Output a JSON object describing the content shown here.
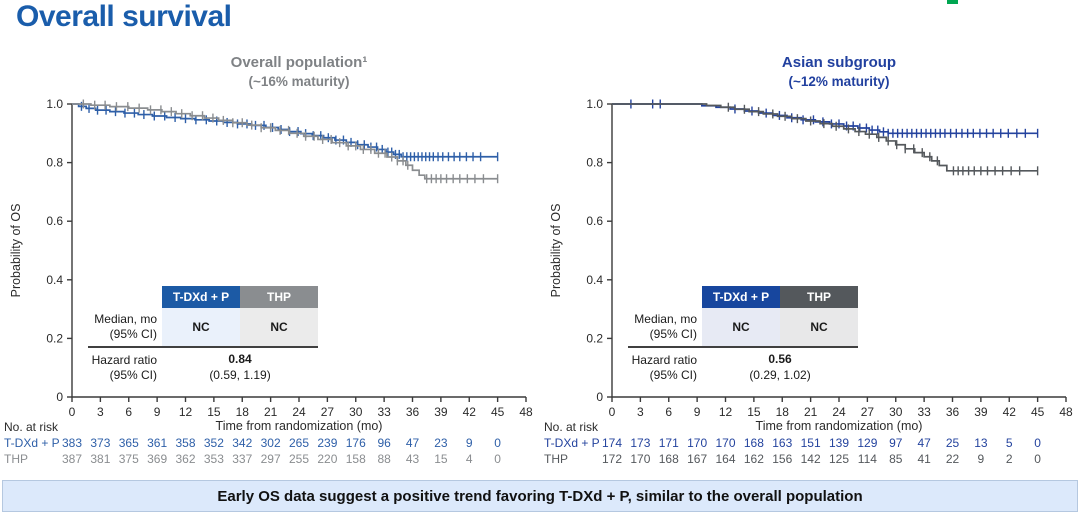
{
  "page": {
    "title": "Overall survival",
    "title_color": "#1a5dab",
    "brand_color": "#00a651",
    "banner": {
      "text": "Early OS data suggest a positive trend favoring T-DXd + P, similar to the overall population",
      "bg": "#dce9fb"
    }
  },
  "chart_data": [
    {
      "type": "line",
      "subtype": "kaplan-meier",
      "title": "Overall population¹",
      "subtitle": "(~16% maturity)",
      "title_color": "#7f8285",
      "xlabel": "Time from randomization (mo)",
      "ylabel": "Probability of OS",
      "xlim": [
        0,
        48
      ],
      "xticks": [
        0,
        3,
        6,
        9,
        12,
        15,
        18,
        21,
        24,
        27,
        30,
        33,
        36,
        39,
        42,
        45,
        48
      ],
      "ylim": [
        0,
        1
      ],
      "yticks": [
        0,
        0.2,
        0.4,
        0.6,
        0.8,
        1.0
      ],
      "ytick_labels": [
        "0",
        "0.2",
        "0.4",
        "0.6",
        "0.8",
        "1.0"
      ],
      "series": [
        {
          "name": "T-DXd + P",
          "color": "#2e5fa8",
          "steps": [
            [
              0,
              1
            ],
            [
              0.7,
              0.992
            ],
            [
              1.5,
              0.985
            ],
            [
              2.5,
              0.979
            ],
            [
              4,
              0.974
            ],
            [
              5.5,
              0.969
            ],
            [
              7,
              0.964
            ],
            [
              8.5,
              0.959
            ],
            [
              10,
              0.954
            ],
            [
              11.5,
              0.95
            ],
            [
              13,
              0.946
            ],
            [
              14.5,
              0.942
            ],
            [
              16,
              0.937
            ],
            [
              17.5,
              0.932
            ],
            [
              19,
              0.927
            ],
            [
              20.5,
              0.92
            ],
            [
              21.8,
              0.913
            ],
            [
              23,
              0.906
            ],
            [
              24.2,
              0.899
            ],
            [
              25.4,
              0.892
            ],
            [
              26.6,
              0.885
            ],
            [
              27.8,
              0.877
            ],
            [
              29,
              0.869
            ],
            [
              30.2,
              0.861
            ],
            [
              31.3,
              0.853
            ],
            [
              32.3,
              0.845
            ],
            [
              33.2,
              0.836
            ],
            [
              34,
              0.828
            ],
            [
              34.8,
              0.82
            ]
          ],
          "end_x": 45,
          "censors": [
            1.0,
            1.8,
            2.7,
            3.6,
            4.6,
            5.6,
            6.6,
            7.6,
            8.7,
            9.8,
            10.9,
            12,
            13.1,
            14.2,
            15.3,
            16.4,
            17.5,
            18.5,
            19.4,
            20.3,
            21.2,
            22.1,
            23,
            23.9,
            24.7,
            25.5,
            26.3,
            27.1,
            27.9,
            28.7,
            29.5,
            30.2,
            30.9,
            31.6,
            32.2,
            32.8,
            33.4,
            33.8,
            34.2,
            34.6,
            35,
            35.4,
            35.8,
            36.2,
            36.6,
            37,
            37.4,
            37.8,
            38.2,
            38.7,
            39.2,
            39.8,
            40.4,
            41,
            41.7,
            42.4,
            43.2,
            45
          ]
        },
        {
          "name": "THP",
          "color": "#8a8d90",
          "steps": [
            [
              0,
              1
            ],
            [
              2,
              0.996
            ],
            [
              4,
              0.991
            ],
            [
              6,
              0.986
            ],
            [
              8,
              0.98
            ],
            [
              9.5,
              0.974
            ],
            [
              11,
              0.967
            ],
            [
              12.5,
              0.96
            ],
            [
              14,
              0.952
            ],
            [
              15.5,
              0.944
            ],
            [
              17,
              0.936
            ],
            [
              18.5,
              0.928
            ],
            [
              20,
              0.919
            ],
            [
              21.5,
              0.91
            ],
            [
              23,
              0.9
            ],
            [
              24.5,
              0.89
            ],
            [
              26,
              0.879
            ],
            [
              27.5,
              0.868
            ],
            [
              29,
              0.857
            ],
            [
              30.5,
              0.845
            ],
            [
              32,
              0.832
            ],
            [
              33.3,
              0.819
            ],
            [
              34.4,
              0.806
            ],
            [
              35.3,
              0.791
            ],
            [
              36,
              0.774
            ],
            [
              36.7,
              0.757
            ],
            [
              37.3,
              0.745
            ]
          ],
          "end_x": 45,
          "censors": [
            1.2,
            2.4,
            3.5,
            4.7,
            5.9,
            7.1,
            8.3,
            9.4,
            10.5,
            11.6,
            12.7,
            13.8,
            14.9,
            16,
            17,
            18,
            19,
            20,
            21,
            22,
            22.9,
            23.8,
            24.7,
            25.6,
            26.5,
            27.4,
            28.3,
            29.2,
            30,
            30.8,
            31.6,
            32.4,
            33.1,
            33.8,
            34.4,
            35,
            35.5,
            37.5,
            38,
            38.5,
            39,
            39.6,
            40.3,
            41,
            41.8,
            42.6,
            43.5,
            45
          ]
        }
      ],
      "stats_table": {
        "columns": [
          "T-DXd + P",
          "THP"
        ],
        "header_bg": [
          "#1c5aa5",
          "#8a8d90"
        ],
        "median_label_line1": "Median, mo",
        "median_label_line2": "(95% CI)",
        "median_values": [
          "NC",
          "NC"
        ],
        "median_bg": [
          "#eaf1fb",
          "#ebebeb"
        ],
        "hr_label_line1": "Hazard ratio",
        "hr_label_line2": "(95% CI)",
        "hr_value": "0.84",
        "hr_ci": "(0.59, 1.19)"
      },
      "at_risk": {
        "label": "No. at risk",
        "rows": [
          {
            "name": "T-DXd + P",
            "color": "#2e5fa8",
            "values": [
              383,
              373,
              365,
              361,
              358,
              352,
              342,
              302,
              265,
              239,
              176,
              96,
              47,
              23,
              9,
              0
            ]
          },
          {
            "name": "THP",
            "color": "#8a8d90",
            "values": [
              387,
              381,
              375,
              369,
              362,
              353,
              337,
              297,
              255,
              220,
              158,
              88,
              43,
              15,
              4,
              0
            ]
          }
        ]
      }
    },
    {
      "type": "line",
      "subtype": "kaplan-meier",
      "title": "Asian subgroup",
      "subtitle": "(~12% maturity)",
      "title_color": "#21409f",
      "xlabel": "Time from randomization (mo)",
      "ylabel": "Probability of OS",
      "xlim": [
        0,
        48
      ],
      "xticks": [
        0,
        3,
        6,
        9,
        12,
        15,
        18,
        21,
        24,
        27,
        30,
        33,
        36,
        39,
        42,
        45,
        48
      ],
      "ylim": [
        0,
        1
      ],
      "yticks": [
        0,
        0.2,
        0.4,
        0.6,
        0.8,
        1.0
      ],
      "ytick_labels": [
        "0",
        "0.2",
        "0.4",
        "0.6",
        "0.8",
        "1.0"
      ],
      "series": [
        {
          "name": "T-DXd + P",
          "color": "#24439e",
          "steps": [
            [
              0,
              1
            ],
            [
              9.5,
              0.994
            ],
            [
              11,
              0.989
            ],
            [
              12.5,
              0.983
            ],
            [
              14,
              0.976
            ],
            [
              15.5,
              0.969
            ],
            [
              17,
              0.961
            ],
            [
              18.5,
              0.953
            ],
            [
              20,
              0.946
            ],
            [
              21.5,
              0.939
            ],
            [
              23,
              0.932
            ],
            [
              24.5,
              0.925
            ],
            [
              26,
              0.918
            ],
            [
              27.2,
              0.911
            ],
            [
              28.3,
              0.905
            ],
            [
              29.2,
              0.9
            ]
          ],
          "end_x": 45,
          "censors": [
            2,
            4.3,
            5.1,
            13,
            14.8,
            16.3,
            17.7,
            19,
            20.2,
            21.3,
            22.3,
            23.2,
            24,
            24.8,
            25.5,
            26.2,
            26.9,
            27.5,
            28.1,
            28.7,
            29.2,
            29.7,
            30.2,
            30.7,
            31.2,
            31.7,
            32.2,
            32.7,
            33.2,
            33.7,
            34.2,
            34.7,
            35.2,
            35.8,
            36.4,
            37,
            37.6,
            38.2,
            38.9,
            39.6,
            40.3,
            41.1,
            41.9,
            42.8,
            43.7,
            45
          ]
        },
        {
          "name": "THP",
          "color": "#54585c",
          "steps": [
            [
              0,
              1
            ],
            [
              10,
              0.995
            ],
            [
              11.5,
              0.989
            ],
            [
              13,
              0.982
            ],
            [
              14.5,
              0.974
            ],
            [
              16,
              0.966
            ],
            [
              17.5,
              0.958
            ],
            [
              19,
              0.95
            ],
            [
              20.5,
              0.942
            ],
            [
              22,
              0.933
            ],
            [
              23.3,
              0.924
            ],
            [
              24.5,
              0.915
            ],
            [
              25.7,
              0.906
            ],
            [
              26.8,
              0.897
            ],
            [
              28,
              0.886
            ],
            [
              29,
              0.874
            ],
            [
              30,
              0.861
            ],
            [
              31,
              0.847
            ],
            [
              32,
              0.834
            ],
            [
              33,
              0.82
            ],
            [
              33.8,
              0.806
            ],
            [
              34.6,
              0.79
            ],
            [
              35.4,
              0.772
            ]
          ],
          "end_x": 45,
          "censors": [
            12.3,
            14,
            15.5,
            17,
            18.3,
            19.6,
            21,
            22.4,
            23.7,
            25,
            26.1,
            27.2,
            28.2,
            29.2,
            30.1,
            31,
            31.9,
            32.8,
            33.6,
            34.4,
            36.1,
            36.6,
            37.1,
            37.7,
            38.3,
            39,
            39.7,
            40.5,
            41.3,
            42.2,
            43.1,
            45
          ]
        }
      ],
      "stats_table": {
        "columns": [
          "T-DXd + P",
          "THP"
        ],
        "header_bg": [
          "#17469e",
          "#54585c"
        ],
        "median_label_line1": "Median, mo",
        "median_label_line2": "(95% CI)",
        "median_values": [
          "NC",
          "NC"
        ],
        "median_bg": [
          "#e7eaf4",
          "#e8e8e9"
        ],
        "hr_label_line1": "Hazard ratio",
        "hr_label_line2": "(95% CI)",
        "hr_value": "0.56",
        "hr_ci": "(0.29, 1.02)"
      },
      "at_risk": {
        "label": "No. at risk",
        "rows": [
          {
            "name": "T-DXd + P",
            "color": "#24439e",
            "values": [
              174,
              173,
              171,
              170,
              170,
              168,
              163,
              151,
              139,
              129,
              97,
              47,
              25,
              13,
              5,
              0
            ]
          },
          {
            "name": "THP",
            "color": "#54585c",
            "values": [
              172,
              170,
              168,
              167,
              164,
              162,
              156,
              142,
              125,
              114,
              85,
              41,
              22,
              9,
              2,
              0
            ]
          }
        ]
      }
    }
  ]
}
